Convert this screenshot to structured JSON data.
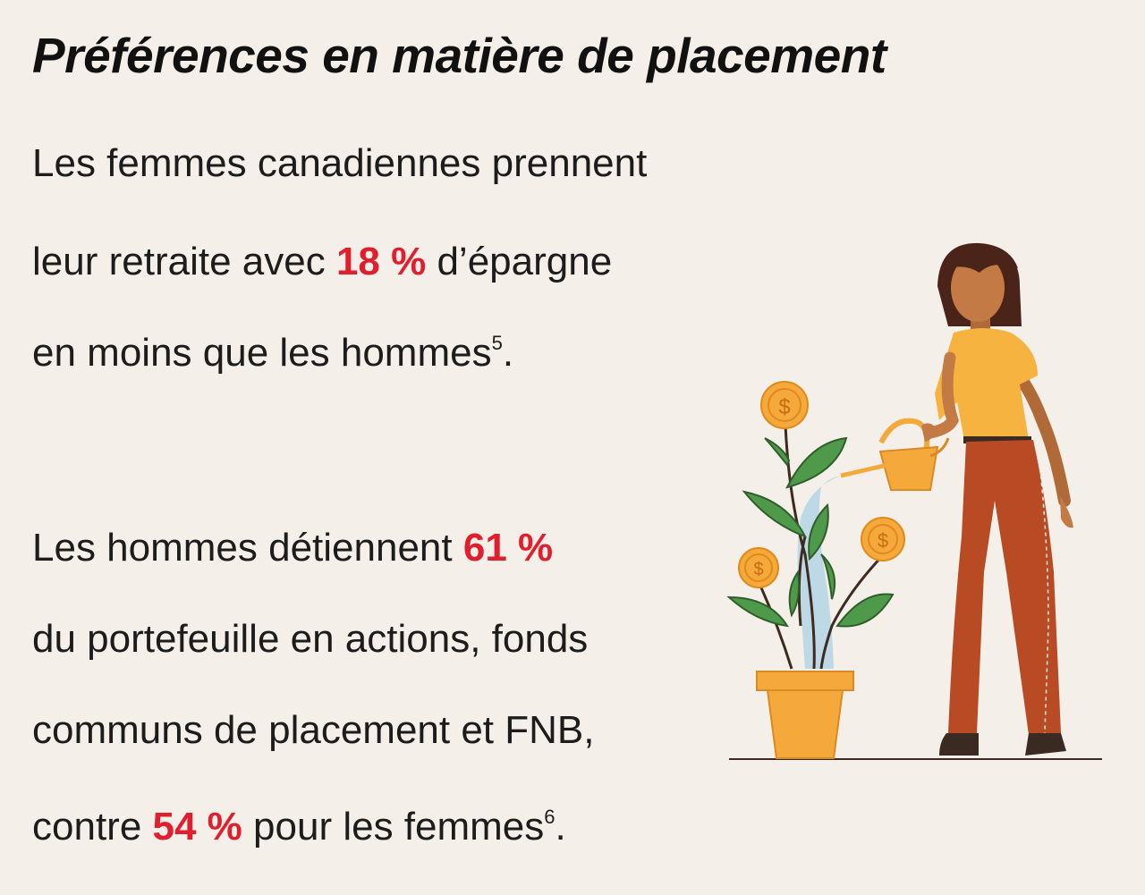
{
  "title": "Préférences en matière de placement",
  "block1": {
    "line1": "Les femmes canadiennes prennent",
    "line2_before": "leur retraite avec ",
    "line2_highlight": "18 %",
    "line2_after": " d’épargne",
    "line3_text": "en moins que les hommes",
    "line3_sup": "5",
    "line3_end": "."
  },
  "block2": {
    "line1_before": "Les hommes détiennent ",
    "line1_highlight": "61 %",
    "line2": "du portefeuille en actions, fonds",
    "line3": "communs de placement et FNB,",
    "line4_before": "contre ",
    "line4_highlight": "54 %",
    "line4_after": " pour les femmes",
    "line4_sup": "6",
    "line4_end": "."
  },
  "illustration": {
    "icons": [
      "woman-figure",
      "watering-can-icon",
      "plant-pot-icon",
      "dollar-coin-icon"
    ]
  },
  "colors": {
    "background": "#F4EFE9",
    "highlight": "#E01E2E",
    "coin": "#F6A93B",
    "leaf": "#4E9A4A",
    "pants": "#B84A24",
    "shirt": "#F7B340",
    "skin": "#C47A45",
    "hair": "#4A2418",
    "water": "#B9D7E6"
  }
}
